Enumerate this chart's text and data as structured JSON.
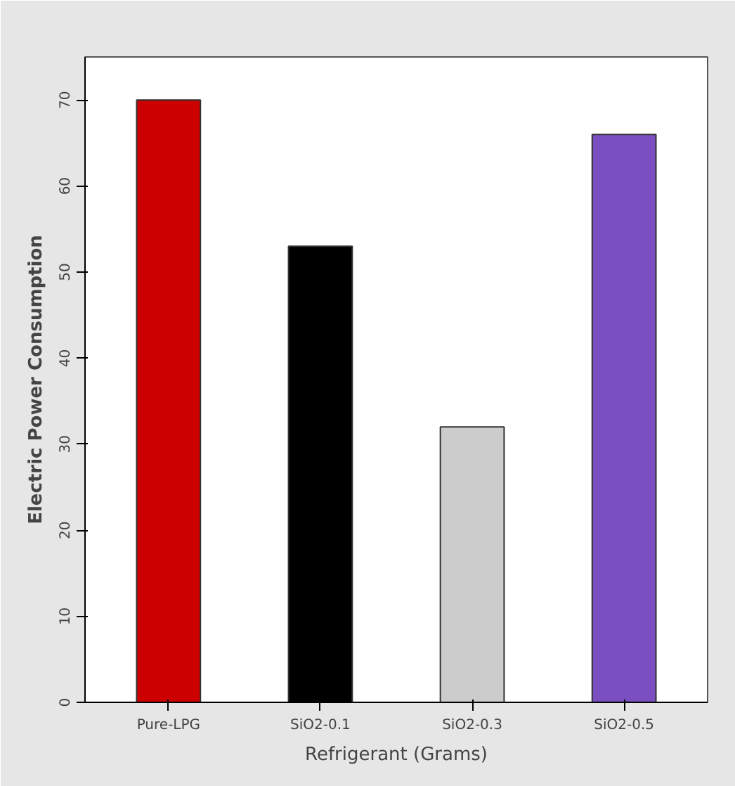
{
  "chart_data": {
    "type": "bar",
    "xlabel": "Refrigerant (Grams)",
    "ylabel": "Electric Power Consumption",
    "categories": [
      "Pure-LPG",
      "SiO2-0.1",
      "SiO2-0.3",
      "SiO2-0.5"
    ],
    "values": [
      70,
      53,
      32,
      66
    ],
    "colors": [
      "#cc0000",
      "#000000",
      "#cccccc",
      "#7b4fbf"
    ],
    "ylim": [
      0,
      75
    ],
    "yticks": [
      0,
      10,
      20,
      30,
      40,
      50,
      60,
      70
    ],
    "grid": false
  }
}
